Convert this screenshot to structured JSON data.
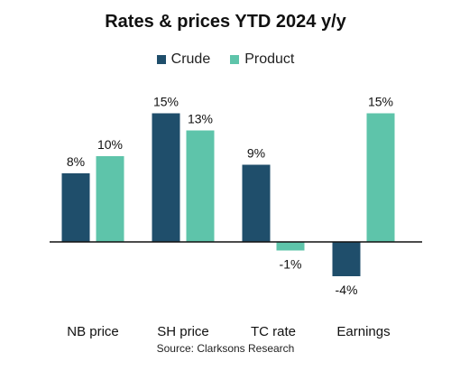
{
  "chart_data": {
    "type": "bar",
    "title": "Rates & prices YTD 2024 y/y",
    "categories": [
      "NB price",
      "SH price",
      "TC rate",
      "Earnings"
    ],
    "series": [
      {
        "name": "Crude",
        "values": [
          8,
          15,
          9,
          -4
        ],
        "labels": [
          "8%",
          "15%",
          "9%",
          "-4%"
        ],
        "color": "#1f4e6b"
      },
      {
        "name": "Product",
        "values": [
          10,
          13,
          -1,
          15
        ],
        "labels": [
          "10%",
          "13%",
          "-1%",
          "15%"
        ],
        "color": "#5ec4aa"
      }
    ],
    "xlabel": "",
    "ylabel": "",
    "ylim": [
      -7,
      20
    ],
    "grid": false,
    "legend": "top-center",
    "source": "Source: Clarksons Research"
  }
}
